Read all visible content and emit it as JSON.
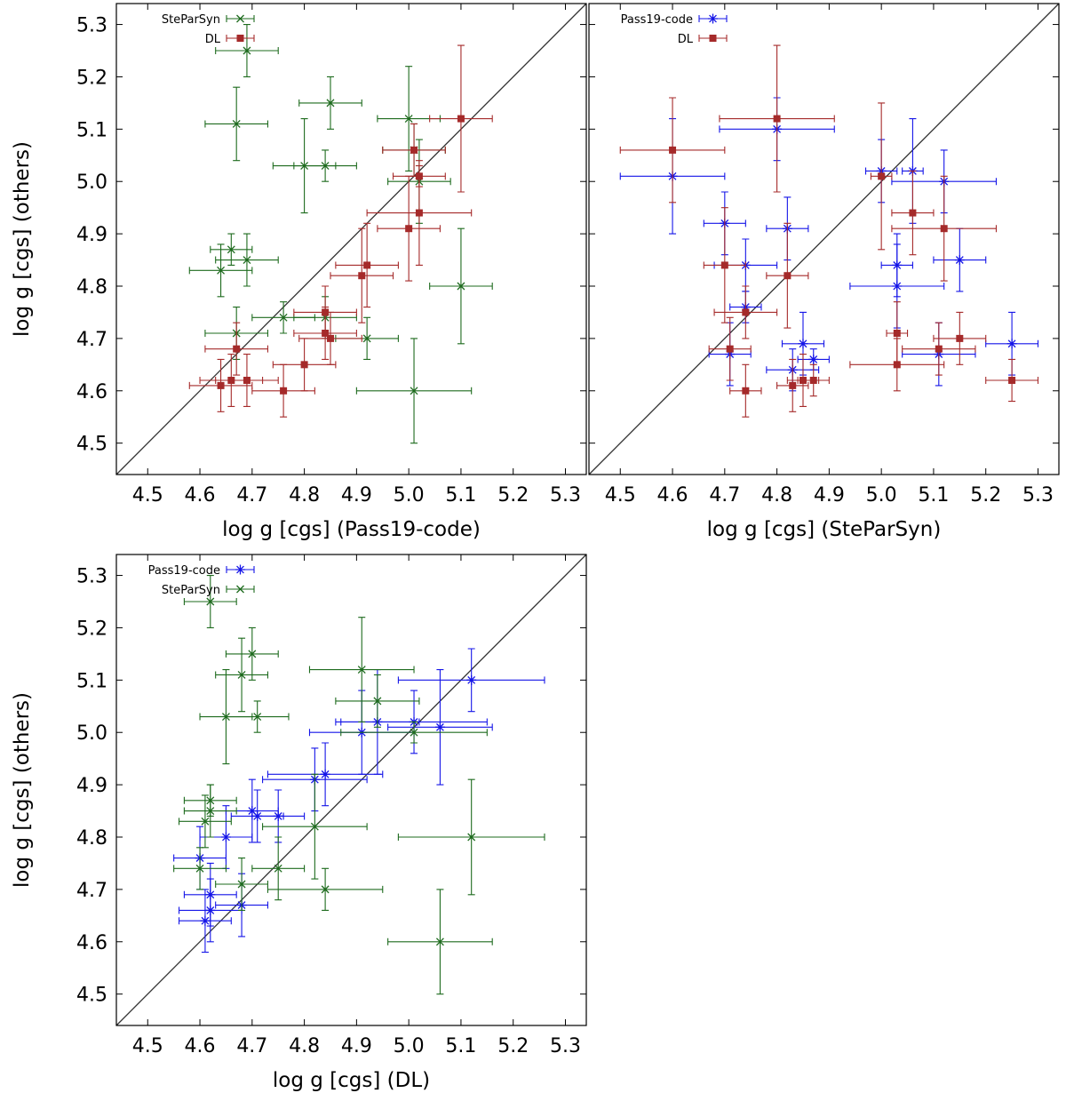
{
  "figure": {
    "panels_description": "Three scatter plots of surface gravity comparisons",
    "colors": {
      "green": "#1e6b1e",
      "red": "#a52a2a",
      "blue": "#1515e8",
      "frame": "#000000",
      "diagonal": "#333333"
    }
  },
  "chart_data": [
    {
      "type": "scatter",
      "id": "panel-pass19",
      "xlabel": "log g [cgs] (Pass19-code)",
      "ylabel": "log g [cgs] (others)",
      "xlim": [
        4.44,
        5.34
      ],
      "ylim": [
        4.44,
        5.34
      ],
      "ticks": [
        "4.5",
        "4.6",
        "4.7",
        "4.8",
        "4.9",
        "5.0",
        "5.1",
        "5.2",
        "5.3"
      ],
      "tick_values": [
        4.5,
        4.6,
        4.7,
        4.8,
        4.9,
        5.0,
        5.1,
        5.2,
        5.3
      ],
      "diagonal": true,
      "legend_position": "top-left",
      "series": [
        {
          "name": "SteParSyn",
          "color": "#1e6b1e",
          "marker": "x",
          "points": [
            {
              "x": 4.69,
              "y": 5.25,
              "xerr": 0.06,
              "yerr": 0.05
            },
            {
              "x": 4.67,
              "y": 5.11,
              "xerr": 0.06,
              "yerr": 0.07
            },
            {
              "x": 4.85,
              "y": 5.15,
              "xerr": 0.06,
              "yerr": 0.05
            },
            {
              "x": 5.0,
              "y": 5.12,
              "xerr": 0.06,
              "yerr": 0.1
            },
            {
              "x": 4.8,
              "y": 5.03,
              "xerr": 0.06,
              "yerr": 0.09
            },
            {
              "x": 4.84,
              "y": 5.03,
              "xerr": 0.06,
              "yerr": 0.03
            },
            {
              "x": 5.02,
              "y": 5.0,
              "xerr": 0.06,
              "yerr": 0.08
            },
            {
              "x": 5.01,
              "y": 5.06,
              "xerr": 0.06,
              "yerr": 0.05
            },
            {
              "x": 4.66,
              "y": 4.87,
              "xerr": 0.04,
              "yerr": 0.03
            },
            {
              "x": 4.69,
              "y": 4.85,
              "xerr": 0.06,
              "yerr": 0.05
            },
            {
              "x": 4.64,
              "y": 4.83,
              "xerr": 0.06,
              "yerr": 0.05
            },
            {
              "x": 4.67,
              "y": 4.71,
              "xerr": 0.06,
              "yerr": 0.05
            },
            {
              "x": 4.76,
              "y": 4.74,
              "xerr": 0.06,
              "yerr": 0.03
            },
            {
              "x": 4.84,
              "y": 4.74,
              "xerr": 0.06,
              "yerr": 0.04
            },
            {
              "x": 4.92,
              "y": 4.7,
              "xerr": 0.06,
              "yerr": 0.04
            },
            {
              "x": 5.1,
              "y": 4.8,
              "xerr": 0.06,
              "yerr": 0.11
            },
            {
              "x": 5.01,
              "y": 4.6,
              "xerr": 0.11,
              "yerr": 0.1
            }
          ]
        },
        {
          "name": "DL",
          "color": "#a52a2a",
          "marker": "square",
          "points": [
            {
              "x": 5.1,
              "y": 5.12,
              "xerr": 0.06,
              "yerr": 0.14
            },
            {
              "x": 5.01,
              "y": 5.06,
              "xerr": 0.06,
              "yerr": 0.05
            },
            {
              "x": 5.02,
              "y": 5.01,
              "xerr": 0.05,
              "yerr": 0.02
            },
            {
              "x": 5.02,
              "y": 4.94,
              "xerr": 0.1,
              "yerr": 0.1
            },
            {
              "x": 5.0,
              "y": 4.91,
              "xerr": 0.06,
              "yerr": 0.1
            },
            {
              "x": 4.92,
              "y": 4.84,
              "xerr": 0.06,
              "yerr": 0.08
            },
            {
              "x": 4.91,
              "y": 4.82,
              "xerr": 0.06,
              "yerr": 0.09
            },
            {
              "x": 4.84,
              "y": 4.75,
              "xerr": 0.06,
              "yerr": 0.05
            },
            {
              "x": 4.84,
              "y": 4.71,
              "xerr": 0.06,
              "yerr": 0.05
            },
            {
              "x": 4.85,
              "y": 4.7,
              "xerr": 0.06,
              "yerr": 0.05
            },
            {
              "x": 4.8,
              "y": 4.65,
              "xerr": 0.06,
              "yerr": 0.05
            },
            {
              "x": 4.76,
              "y": 4.6,
              "xerr": 0.06,
              "yerr": 0.05
            },
            {
              "x": 4.67,
              "y": 4.68,
              "xerr": 0.06,
              "yerr": 0.05
            },
            {
              "x": 4.64,
              "y": 4.61,
              "xerr": 0.06,
              "yerr": 0.05
            },
            {
              "x": 4.66,
              "y": 4.62,
              "xerr": 0.06,
              "yerr": 0.05
            },
            {
              "x": 4.69,
              "y": 4.62,
              "xerr": 0.06,
              "yerr": 0.05
            }
          ]
        }
      ]
    },
    {
      "type": "scatter",
      "id": "panel-steparsyn",
      "xlabel": "log g [cgs] (SteParSyn)",
      "ylabel": "",
      "xlim": [
        4.44,
        5.34
      ],
      "ylim": [
        4.44,
        5.34
      ],
      "ticks": [
        "4.5",
        "4.6",
        "4.7",
        "4.8",
        "4.9",
        "5.0",
        "5.1",
        "5.2",
        "5.3"
      ],
      "tick_values": [
        4.5,
        4.6,
        4.7,
        4.8,
        4.9,
        5.0,
        5.1,
        5.2,
        5.3
      ],
      "diagonal": true,
      "legend_position": "top-left",
      "series": [
        {
          "name": "Pass19-code",
          "color": "#1515e8",
          "marker": "star",
          "points": [
            {
              "x": 4.8,
              "y": 5.1,
              "xerr": 0.11,
              "yerr": 0.06
            },
            {
              "x": 4.6,
              "y": 5.01,
              "xerr": 0.1,
              "yerr": 0.11
            },
            {
              "x": 4.7,
              "y": 4.92,
              "xerr": 0.04,
              "yerr": 0.06
            },
            {
              "x": 4.74,
              "y": 4.84,
              "xerr": 0.06,
              "yerr": 0.05
            },
            {
              "x": 4.82,
              "y": 4.91,
              "xerr": 0.04,
              "yerr": 0.06
            },
            {
              "x": 4.74,
              "y": 4.76,
              "xerr": 0.03,
              "yerr": 0.03
            },
            {
              "x": 4.71,
              "y": 4.67,
              "xerr": 0.04,
              "yerr": 0.06
            },
            {
              "x": 4.85,
              "y": 4.69,
              "xerr": 0.04,
              "yerr": 0.06
            },
            {
              "x": 4.87,
              "y": 4.66,
              "xerr": 0.03,
              "yerr": 0.02
            },
            {
              "x": 4.83,
              "y": 4.64,
              "xerr": 0.05,
              "yerr": 0.04
            },
            {
              "x": 5.0,
              "y": 5.02,
              "xerr": 0.03,
              "yerr": 0.06
            },
            {
              "x": 5.06,
              "y": 5.02,
              "xerr": 0.02,
              "yerr": 0.1
            },
            {
              "x": 5.12,
              "y": 5.0,
              "xerr": 0.1,
              "yerr": 0.06
            },
            {
              "x": 5.03,
              "y": 4.84,
              "xerr": 0.03,
              "yerr": 0.06
            },
            {
              "x": 5.03,
              "y": 4.8,
              "xerr": 0.09,
              "yerr": 0.08
            },
            {
              "x": 5.15,
              "y": 4.85,
              "xerr": 0.05,
              "yerr": 0.06
            },
            {
              "x": 5.11,
              "y": 4.67,
              "xerr": 0.07,
              "yerr": 0.06
            },
            {
              "x": 5.25,
              "y": 4.69,
              "xerr": 0.05,
              "yerr": 0.06
            }
          ]
        },
        {
          "name": "DL",
          "color": "#a52a2a",
          "marker": "square",
          "points": [
            {
              "x": 4.8,
              "y": 5.12,
              "xerr": 0.11,
              "yerr": 0.14
            },
            {
              "x": 4.6,
              "y": 5.06,
              "xerr": 0.1,
              "yerr": 0.1
            },
            {
              "x": 4.7,
              "y": 4.84,
              "xerr": 0.04,
              "yerr": 0.11
            },
            {
              "x": 4.74,
              "y": 4.75,
              "xerr": 0.06,
              "yerr": 0.05
            },
            {
              "x": 4.82,
              "y": 4.82,
              "xerr": 0.04,
              "yerr": 0.1
            },
            {
              "x": 4.71,
              "y": 4.68,
              "xerr": 0.04,
              "yerr": 0.06
            },
            {
              "x": 4.74,
              "y": 4.6,
              "xerr": 0.03,
              "yerr": 0.05
            },
            {
              "x": 4.83,
              "y": 4.61,
              "xerr": 0.03,
              "yerr": 0.05
            },
            {
              "x": 4.85,
              "y": 4.62,
              "xerr": 0.03,
              "yerr": 0.05
            },
            {
              "x": 4.87,
              "y": 4.62,
              "xerr": 0.03,
              "yerr": 0.03
            },
            {
              "x": 5.0,
              "y": 5.01,
              "xerr": 0.02,
              "yerr": 0.14
            },
            {
              "x": 5.06,
              "y": 4.94,
              "xerr": 0.04,
              "yerr": 0.08
            },
            {
              "x": 5.12,
              "y": 4.91,
              "xerr": 0.1,
              "yerr": 0.1
            },
            {
              "x": 5.03,
              "y": 4.71,
              "xerr": 0.02,
              "yerr": 0.06
            },
            {
              "x": 5.03,
              "y": 4.65,
              "xerr": 0.09,
              "yerr": 0.05
            },
            {
              "x": 5.11,
              "y": 4.68,
              "xerr": 0.07,
              "yerr": 0.05
            },
            {
              "x": 5.15,
              "y": 4.7,
              "xerr": 0.05,
              "yerr": 0.05
            },
            {
              "x": 5.25,
              "y": 4.62,
              "xerr": 0.05,
              "yerr": 0.04
            }
          ]
        }
      ]
    },
    {
      "type": "scatter",
      "id": "panel-dl",
      "xlabel": "log g [cgs] (DL)",
      "ylabel": "log g [cgs] (others)",
      "xlim": [
        4.44,
        5.34
      ],
      "ylim": [
        4.44,
        5.34
      ],
      "ticks": [
        "4.5",
        "4.6",
        "4.7",
        "4.8",
        "4.9",
        "5.0",
        "5.1",
        "5.2",
        "5.3"
      ],
      "tick_values": [
        4.5,
        4.6,
        4.7,
        4.8,
        4.9,
        5.0,
        5.1,
        5.2,
        5.3
      ],
      "diagonal": true,
      "legend_position": "top-left",
      "series": [
        {
          "name": "Pass19-code",
          "color": "#1515e8",
          "marker": "star",
          "points": [
            {
              "x": 5.12,
              "y": 5.1,
              "xerr": 0.14,
              "yerr": 0.06
            },
            {
              "x": 4.91,
              "y": 5.0,
              "xerr": 0.1,
              "yerr": 0.08
            },
            {
              "x": 4.94,
              "y": 5.02,
              "xerr": 0.08,
              "yerr": 0.1
            },
            {
              "x": 5.01,
              "y": 5.02,
              "xerr": 0.14,
              "yerr": 0.06
            },
            {
              "x": 5.06,
              "y": 5.01,
              "xerr": 0.1,
              "yerr": 0.11
            },
            {
              "x": 4.82,
              "y": 4.91,
              "xerr": 0.1,
              "yerr": 0.06
            },
            {
              "x": 4.84,
              "y": 4.92,
              "xerr": 0.11,
              "yerr": 0.06
            },
            {
              "x": 4.7,
              "y": 4.85,
              "xerr": 0.05,
              "yerr": 0.06
            },
            {
              "x": 4.71,
              "y": 4.84,
              "xerr": 0.05,
              "yerr": 0.05
            },
            {
              "x": 4.75,
              "y": 4.84,
              "xerr": 0.05,
              "yerr": 0.05
            },
            {
              "x": 4.65,
              "y": 4.8,
              "xerr": 0.05,
              "yerr": 0.06
            },
            {
              "x": 4.6,
              "y": 4.76,
              "xerr": 0.05,
              "yerr": 0.06
            },
            {
              "x": 4.62,
              "y": 4.69,
              "xerr": 0.05,
              "yerr": 0.06
            },
            {
              "x": 4.68,
              "y": 4.67,
              "xerr": 0.05,
              "yerr": 0.06
            },
            {
              "x": 4.62,
              "y": 4.66,
              "xerr": 0.06,
              "yerr": 0.06
            },
            {
              "x": 4.61,
              "y": 4.64,
              "xerr": 0.05,
              "yerr": 0.06
            }
          ]
        },
        {
          "name": "SteParSyn",
          "color": "#1e6b1e",
          "marker": "x",
          "points": [
            {
              "x": 4.62,
              "y": 5.25,
              "xerr": 0.05,
              "yerr": 0.05
            },
            {
              "x": 4.7,
              "y": 5.15,
              "xerr": 0.05,
              "yerr": 0.05
            },
            {
              "x": 4.68,
              "y": 5.11,
              "xerr": 0.05,
              "yerr": 0.07
            },
            {
              "x": 4.91,
              "y": 5.12,
              "xerr": 0.1,
              "yerr": 0.1
            },
            {
              "x": 4.65,
              "y": 5.03,
              "xerr": 0.05,
              "yerr": 0.09
            },
            {
              "x": 4.71,
              "y": 5.03,
              "xerr": 0.06,
              "yerr": 0.03
            },
            {
              "x": 4.94,
              "y": 5.06,
              "xerr": 0.08,
              "yerr": 0.05
            },
            {
              "x": 5.01,
              "y": 5.0,
              "xerr": 0.14,
              "yerr": 0.02
            },
            {
              "x": 4.62,
              "y": 4.87,
              "xerr": 0.05,
              "yerr": 0.03
            },
            {
              "x": 4.62,
              "y": 4.85,
              "xerr": 0.05,
              "yerr": 0.05
            },
            {
              "x": 4.61,
              "y": 4.83,
              "xerr": 0.05,
              "yerr": 0.05
            },
            {
              "x": 4.82,
              "y": 4.82,
              "xerr": 0.1,
              "yerr": 0.1
            },
            {
              "x": 4.6,
              "y": 4.74,
              "xerr": 0.05,
              "yerr": 0.04
            },
            {
              "x": 4.75,
              "y": 4.74,
              "xerr": 0.05,
              "yerr": 0.06
            },
            {
              "x": 4.68,
              "y": 4.71,
              "xerr": 0.05,
              "yerr": 0.05
            },
            {
              "x": 4.84,
              "y": 4.7,
              "xerr": 0.11,
              "yerr": 0.04
            },
            {
              "x": 5.12,
              "y": 4.8,
              "xerr": 0.14,
              "yerr": 0.11
            },
            {
              "x": 5.06,
              "y": 4.6,
              "xerr": 0.1,
              "yerr": 0.1
            }
          ]
        }
      ]
    }
  ]
}
